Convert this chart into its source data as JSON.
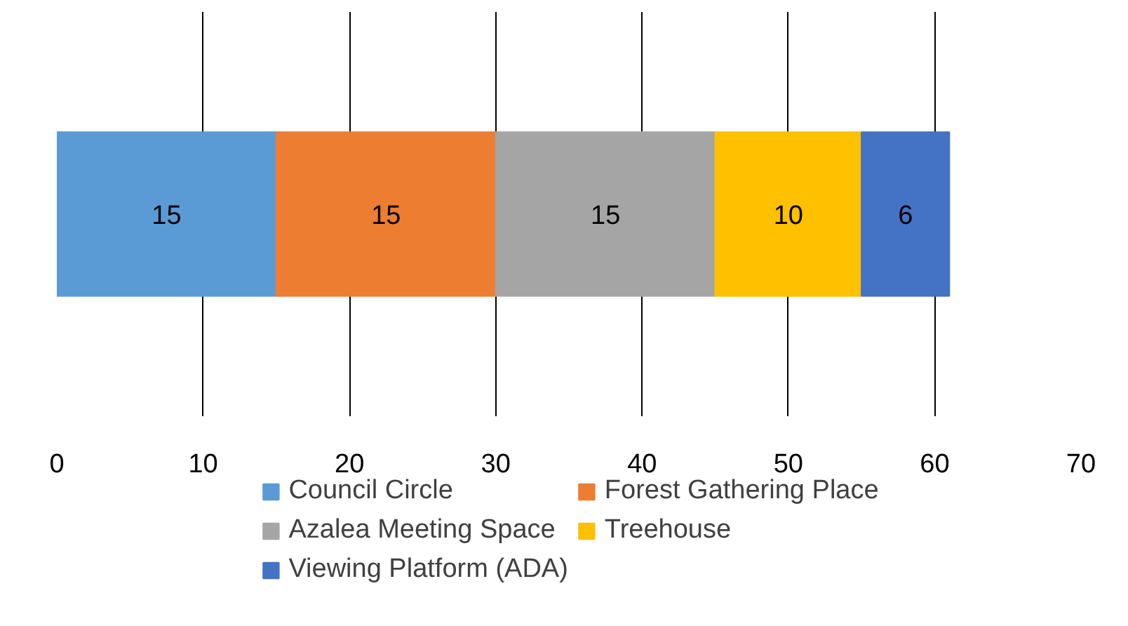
{
  "chart_data": {
    "type": "bar",
    "orientation": "horizontal",
    "stacked": true,
    "categories": [
      null
    ],
    "series": [
      {
        "name": "Council Circle",
        "color": "#5b9bd5",
        "values": [
          15
        ]
      },
      {
        "name": "Forest Gathering Place",
        "color": "#ed7d31",
        "values": [
          15
        ]
      },
      {
        "name": "Azalea Meeting Space",
        "color": "#a5a5a5",
        "values": [
          15
        ]
      },
      {
        "name": "Treehouse",
        "color": "#ffc000",
        "values": [
          10
        ]
      },
      {
        "name": "Viewing Platform (ADA)",
        "color": "#4472c4",
        "values": [
          6
        ]
      }
    ],
    "xlim": [
      0,
      70
    ],
    "xticks": [
      0,
      10,
      20,
      30,
      40,
      50,
      60,
      70
    ],
    "grid": "x",
    "legend": "bottom",
    "data_labels": true,
    "tick_labels": "x"
  }
}
